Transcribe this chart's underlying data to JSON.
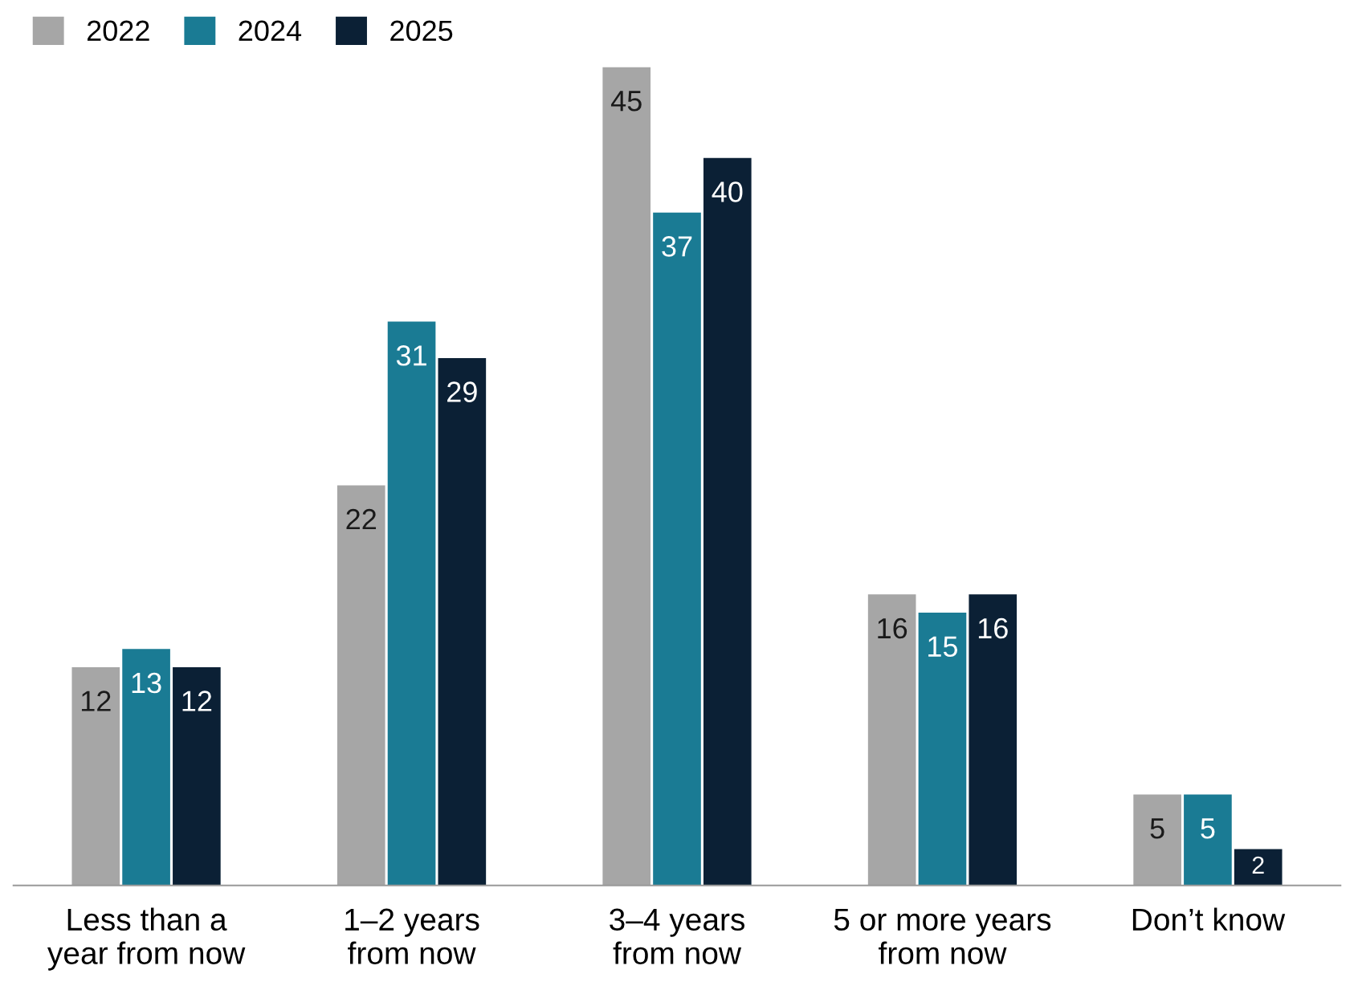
{
  "chart_data": {
    "type": "bar",
    "categories": [
      "Less than a\nyear from now",
      "1–2 years\nfrom now",
      "3–4 years\nfrom now",
      "5 or more years\nfrom now",
      "Don’t know"
    ],
    "series": [
      {
        "name": "2022",
        "color": "#a6a6a6",
        "values": [
          12,
          22,
          45,
          16,
          5
        ]
      },
      {
        "name": "2024",
        "color": "#1a7b94",
        "values": [
          13,
          31,
          37,
          15,
          5
        ]
      },
      {
        "name": "2025",
        "color": "#0b2035",
        "values": [
          12,
          29,
          40,
          16,
          2
        ]
      }
    ],
    "data_labels": true,
    "legend": "top left",
    "grid": false
  }
}
